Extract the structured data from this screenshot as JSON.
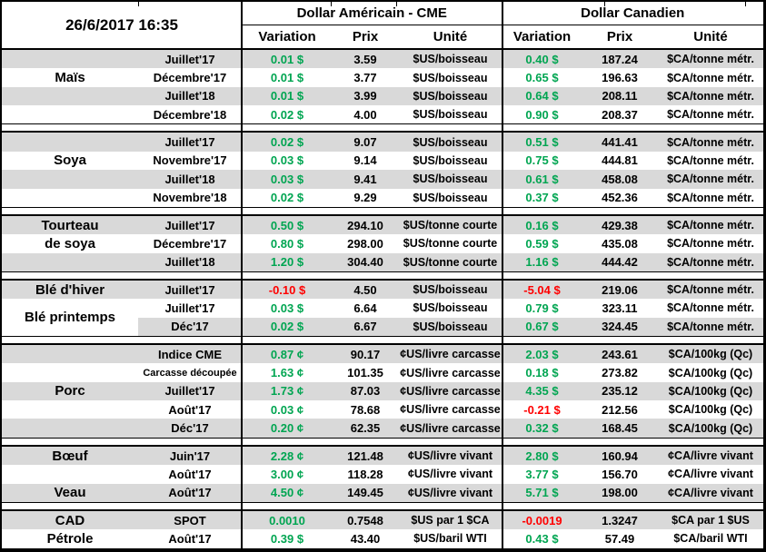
{
  "datetime": "26/6/2017 16:35",
  "header": {
    "us_title": "Dollar Américain - CME",
    "ca_title": "Dollar Canadien",
    "variation": "Variation",
    "prix": "Prix",
    "unite": "Unité"
  },
  "colors": {
    "positive_green": "#00a551",
    "negative_red": "#ff0000",
    "stripe_gray": "#d9d9d9",
    "border_black": "#000000"
  },
  "groups": [
    {
      "labels": [
        {
          "text": "Maïs",
          "row": 1,
          "span": 1
        }
      ],
      "rows": [
        {
          "contract": "Juillet'17",
          "us_var": "0.01 $",
          "us_prix": "3.59",
          "us_unit": "$US/boisseau",
          "ca_var": "0.40 $",
          "ca_prix": "187.24",
          "ca_unit": "$CA/tonne métr."
        },
        {
          "contract": "Décembre'17",
          "us_var": "0.01 $",
          "us_prix": "3.77",
          "us_unit": "$US/boisseau",
          "ca_var": "0.65 $",
          "ca_prix": "196.63",
          "ca_unit": "$CA/tonne métr."
        },
        {
          "contract": "Juillet'18",
          "us_var": "0.01 $",
          "us_prix": "3.99",
          "us_unit": "$US/boisseau",
          "ca_var": "0.64 $",
          "ca_prix": "208.11",
          "ca_unit": "$CA/tonne métr."
        },
        {
          "contract": "Décembre'18",
          "us_var": "0.02 $",
          "us_prix": "4.00",
          "us_unit": "$US/boisseau",
          "ca_var": "0.90 $",
          "ca_prix": "208.37",
          "ca_unit": "$CA/tonne métr."
        }
      ]
    },
    {
      "labels": [
        {
          "text": "Soya",
          "row": 1,
          "span": 1
        }
      ],
      "rows": [
        {
          "contract": "Juillet'17",
          "us_var": "0.02 $",
          "us_prix": "9.07",
          "us_unit": "$US/boisseau",
          "ca_var": "0.51 $",
          "ca_prix": "441.41",
          "ca_unit": "$CA/tonne métr."
        },
        {
          "contract": "Novembre'17",
          "us_var": "0.03 $",
          "us_prix": "9.14",
          "us_unit": "$US/boisseau",
          "ca_var": "0.75 $",
          "ca_prix": "444.81",
          "ca_unit": "$CA/tonne métr."
        },
        {
          "contract": "Juillet'18",
          "us_var": "0.03 $",
          "us_prix": "9.41",
          "us_unit": "$US/boisseau",
          "ca_var": "0.61 $",
          "ca_prix": "458.08",
          "ca_unit": "$CA/tonne métr."
        },
        {
          "contract": "Novembre'18",
          "us_var": "0.02 $",
          "us_prix": "9.29",
          "us_unit": "$US/boisseau",
          "ca_var": "0.37 $",
          "ca_prix": "452.36",
          "ca_unit": "$CA/tonne métr."
        }
      ]
    },
    {
      "labels": [
        {
          "text": "Tourteau",
          "row": 0,
          "span": 1
        },
        {
          "text": "de soya",
          "row": 1,
          "span": 1
        }
      ],
      "rows": [
        {
          "contract": "Juillet'17",
          "us_var": "0.50 $",
          "us_prix": "294.10",
          "us_unit": "$US/tonne courte",
          "ca_var": "0.16 $",
          "ca_prix": "429.38",
          "ca_unit": "$CA/tonne métr."
        },
        {
          "contract": "Décembre'17",
          "us_var": "0.80 $",
          "us_prix": "298.00",
          "us_unit": "$US/tonne courte",
          "ca_var": "0.59 $",
          "ca_prix": "435.08",
          "ca_unit": "$CA/tonne métr."
        },
        {
          "contract": "Juillet'18",
          "us_var": "1.20 $",
          "us_prix": "304.40",
          "us_unit": "$US/tonne courte",
          "ca_var": "1.16 $",
          "ca_prix": "444.42",
          "ca_unit": "$CA/tonne métr."
        }
      ]
    },
    {
      "labels": [
        {
          "text": "Blé d'hiver",
          "row": 0,
          "span": 1
        },
        {
          "text": "Blé printemps",
          "row": 1,
          "span": 2
        }
      ],
      "rows": [
        {
          "contract": "Juillet'17",
          "us_var": "-0.10 $",
          "us_prix": "4.50",
          "us_unit": "$US/boisseau",
          "ca_var": "-5.04 $",
          "ca_prix": "219.06",
          "ca_unit": "$CA/tonne métr."
        },
        {
          "contract": "Juillet'17",
          "us_var": "0.03 $",
          "us_prix": "6.64",
          "us_unit": "$US/boisseau",
          "ca_var": "0.79 $",
          "ca_prix": "323.11",
          "ca_unit": "$CA/tonne métr."
        },
        {
          "contract": "Déc'17",
          "us_var": "0.02 $",
          "us_prix": "6.67",
          "us_unit": "$US/boisseau",
          "ca_var": "0.67 $",
          "ca_prix": "324.45",
          "ca_unit": "$CA/tonne métr.",
          "name_white": true
        }
      ]
    },
    {
      "labels": [
        {
          "text": "Porc",
          "row": 2,
          "span": 1
        }
      ],
      "rows": [
        {
          "contract": "Indice CME",
          "us_var": "0.87 ¢",
          "us_prix": "90.17",
          "us_unit": "¢US/livre carcasse",
          "ca_var": "2.03 $",
          "ca_prix": "243.61",
          "ca_unit": "$CA/100kg (Qc)"
        },
        {
          "contract": "Carcasse découpée",
          "small": true,
          "us_var": "1.63 ¢",
          "us_prix": "101.35",
          "us_unit": "¢US/livre carcasse",
          "ca_var": "0.18 $",
          "ca_prix": "273.82",
          "ca_unit": "$CA/100kg (Qc)"
        },
        {
          "contract": "Juillet'17",
          "us_var": "1.73 ¢",
          "us_prix": "87.03",
          "us_unit": "¢US/livre carcasse",
          "ca_var": "4.35 $",
          "ca_prix": "235.12",
          "ca_unit": "$CA/100kg (Qc)"
        },
        {
          "contract": "Août'17",
          "us_var": "0.03 ¢",
          "us_prix": "78.68",
          "us_unit": "¢US/livre carcasse",
          "ca_var": "-0.21 $",
          "ca_prix": "212.56",
          "ca_unit": "$CA/100kg (Qc)"
        },
        {
          "contract": "Déc'17",
          "us_var": "0.20 ¢",
          "us_prix": "62.35",
          "us_unit": "¢US/livre carcasse",
          "ca_var": "0.32 $",
          "ca_prix": "168.45",
          "ca_unit": "$CA/100kg (Qc)"
        }
      ]
    },
    {
      "labels": [
        {
          "text": "Bœuf",
          "row": 0,
          "span": 1
        },
        {
          "text": "Veau",
          "row": 2,
          "span": 1
        }
      ],
      "rows": [
        {
          "contract": "Juin'17",
          "us_var": "2.28 ¢",
          "us_prix": "121.48",
          "us_unit": "¢US/livre vivant",
          "ca_var": "2.80 $",
          "ca_prix": "160.94",
          "ca_unit": "¢CA/livre vivant"
        },
        {
          "contract": "Août'17",
          "us_var": "3.00 ¢",
          "us_prix": "118.28",
          "us_unit": "¢US/livre vivant",
          "ca_var": "3.77 $",
          "ca_prix": "156.70",
          "ca_unit": "¢CA/livre vivant"
        },
        {
          "contract": "Août'17",
          "us_var": "4.50 ¢",
          "us_prix": "149.45",
          "us_unit": "¢US/livre vivant",
          "ca_var": "5.71 $",
          "ca_prix": "198.00",
          "ca_unit": "¢CA/livre vivant"
        }
      ]
    },
    {
      "labels": [
        {
          "text": "CAD",
          "row": 0,
          "span": 1
        },
        {
          "text": "Pétrole",
          "row": 1,
          "span": 1
        }
      ],
      "rows": [
        {
          "contract": "SPOT",
          "us_var": "0.0010",
          "us_prix": "0.7548",
          "us_unit": "$US par 1 $CA",
          "ca_var": "-0.0019",
          "ca_prix": "1.3247",
          "ca_unit": "$CA par 1 $US"
        },
        {
          "contract": "Août'17",
          "us_var": "0.39 $",
          "us_prix": "43.40",
          "us_unit": "$US/baril WTI",
          "ca_var": "0.43 $",
          "ca_prix": "57.49",
          "ca_unit": "$CA/baril WTI"
        }
      ]
    }
  ]
}
